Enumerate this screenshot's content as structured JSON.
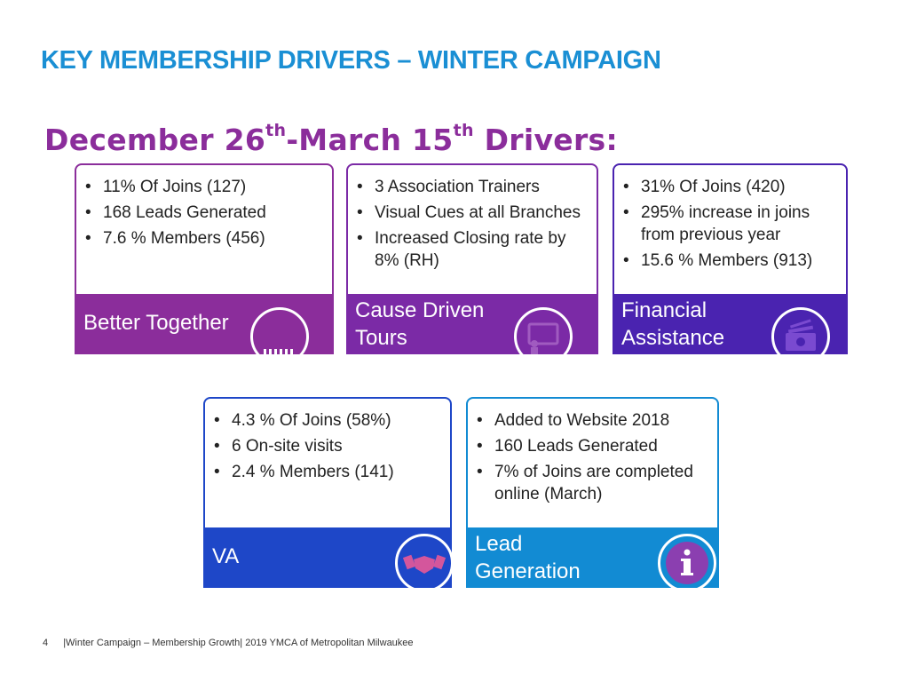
{
  "slide": {
    "title": "KEY MEMBERSHIP DRIVERS – WINTER CAMPAIGN",
    "subtitle": {
      "part1": "December 26",
      "sup1": "th",
      "part2": "-March 15",
      "sup2": "th",
      "part3": " Drivers:"
    }
  },
  "cards": [
    {
      "label": "Better Together",
      "bullets": [
        "11% Of Joins (127)",
        "168 Leads Generated",
        "7.6 % Members (456)"
      ],
      "color": "#8b2d9b",
      "icon": "grid-bars-icon"
    },
    {
      "label_line1": "Cause Driven",
      "label_line2": "Tours",
      "bullets": [
        "3 Association Trainers",
        "Visual Cues at all Branches",
        "Increased Closing rate by 8% (RH)"
      ],
      "color": "#7b2aa6",
      "icon": "presentation-screen-icon"
    },
    {
      "label_line1": "Financial",
      "label_line2": "Assistance",
      "bullets": [
        "31% Of Joins (420)",
        "295% increase in joins from previous year",
        "15.6 % Members (913)"
      ],
      "color": "#4a23b0",
      "icon": "money-bills-icon"
    },
    {
      "label": "VA",
      "bullets": [
        "4.3 % Of Joins (58%)",
        "6 On-site visits",
        "2.4 % Members (141)"
      ],
      "color": "#1e47c8",
      "icon": "handshake-icon"
    },
    {
      "label_line1": "Lead",
      "label_line2": "Generation",
      "bullets": [
        "Added to Website 2018",
        "160 Leads Generated",
        "7% of Joins are completed online (March)"
      ],
      "color": "#128bd3",
      "icon": "info-icon"
    }
  ],
  "footer": {
    "page_number": "4",
    "text": "|Winter Campaign – Membership Growth| 2019 YMCA of Metropolitan Milwaukee"
  }
}
